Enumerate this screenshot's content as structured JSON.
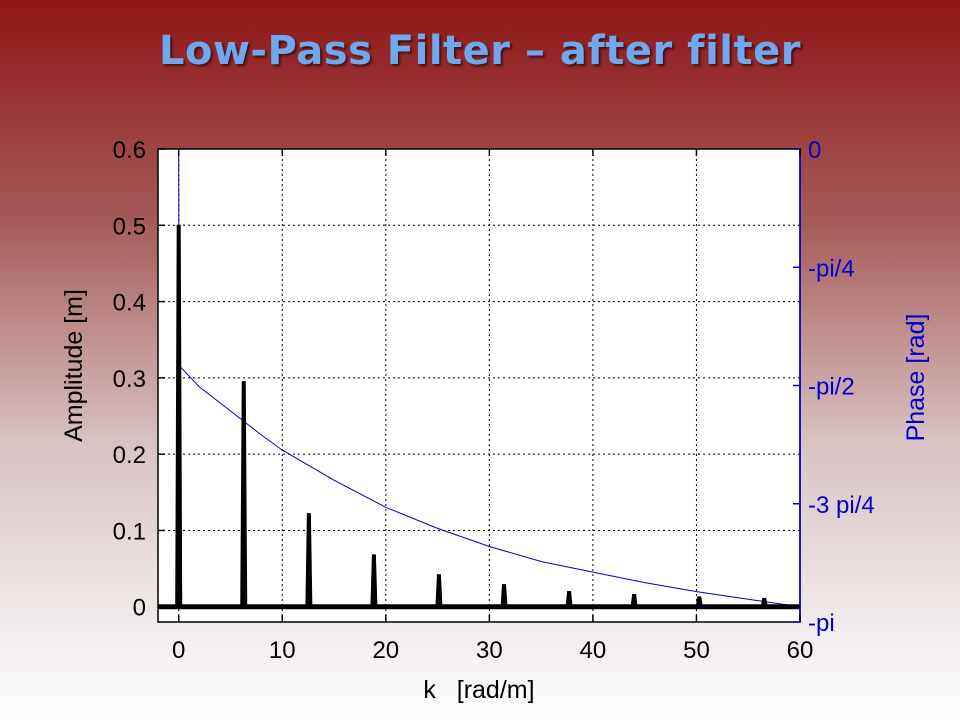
{
  "title": "Low-Pass Filter – after filter",
  "chart_data": {
    "type": "line",
    "xlabel": "k   [rad/m]",
    "ylabel_left": "Amplitude [m]",
    "ylabel_right": "Phase [rad]",
    "xlim": [
      -2,
      60
    ],
    "ylim_left": [
      -0.02,
      0.6
    ],
    "ylim_right": [
      -3.14159,
      0
    ],
    "x_ticks": [
      0,
      10,
      20,
      30,
      40,
      50,
      60
    ],
    "y_ticks_left": [
      {
        "value": 0,
        "label": "0"
      },
      {
        "value": 0.1,
        "label": "0.1"
      },
      {
        "value": 0.2,
        "label": "0.2"
      },
      {
        "value": 0.3,
        "label": "0.3"
      },
      {
        "value": 0.4,
        "label": "0.4"
      },
      {
        "value": 0.5,
        "label": "0.5"
      },
      {
        "value": 0.6,
        "label": "0.6"
      }
    ],
    "y_ticks_right": [
      {
        "value": 0,
        "label": "0"
      },
      {
        "value": -0.7854,
        "label": "-pi/4"
      },
      {
        "value": -1.5708,
        "label": "-pi/2"
      },
      {
        "value": -2.3562,
        "label": "-3 pi/4"
      },
      {
        "value": -3.14159,
        "label": "-pi"
      }
    ],
    "grid": true,
    "series": [
      {
        "name": "",
        "axis": "left",
        "color": "#000000",
        "kind": "spikes",
        "points": [
          {
            "x": 0.0,
            "y": 0.5
          },
          {
            "x": 6.28,
            "y": 0.295
          },
          {
            "x": 12.57,
            "y": 0.122
          },
          {
            "x": 18.85,
            "y": 0.068
          },
          {
            "x": 25.13,
            "y": 0.042
          },
          {
            "x": 31.42,
            "y": 0.029
          },
          {
            "x": 37.7,
            "y": 0.02
          },
          {
            "x": 43.98,
            "y": 0.016
          },
          {
            "x": 50.27,
            "y": 0.013
          },
          {
            "x": 56.55,
            "y": 0.011
          }
        ]
      },
      {
        "name": "",
        "axis": "right",
        "color": "#0000cc",
        "kind": "line",
        "points": [
          {
            "x": 0.0,
            "y": 0.0
          },
          {
            "x": 0.05,
            "y": -1.4
          },
          {
            "x": 0.2,
            "y": -1.45
          },
          {
            "x": 2,
            "y": -1.58
          },
          {
            "x": 5,
            "y": -1.74
          },
          {
            "x": 8,
            "y": -1.9
          },
          {
            "x": 10,
            "y": -2.0
          },
          {
            "x": 15,
            "y": -2.2
          },
          {
            "x": 20,
            "y": -2.38
          },
          {
            "x": 25,
            "y": -2.52
          },
          {
            "x": 30,
            "y": -2.64
          },
          {
            "x": 35,
            "y": -2.74
          },
          {
            "x": 40,
            "y": -2.81
          },
          {
            "x": 45,
            "y": -2.88
          },
          {
            "x": 50,
            "y": -2.94
          },
          {
            "x": 55,
            "y": -2.99
          },
          {
            "x": 60,
            "y": -3.04
          }
        ]
      }
    ]
  }
}
